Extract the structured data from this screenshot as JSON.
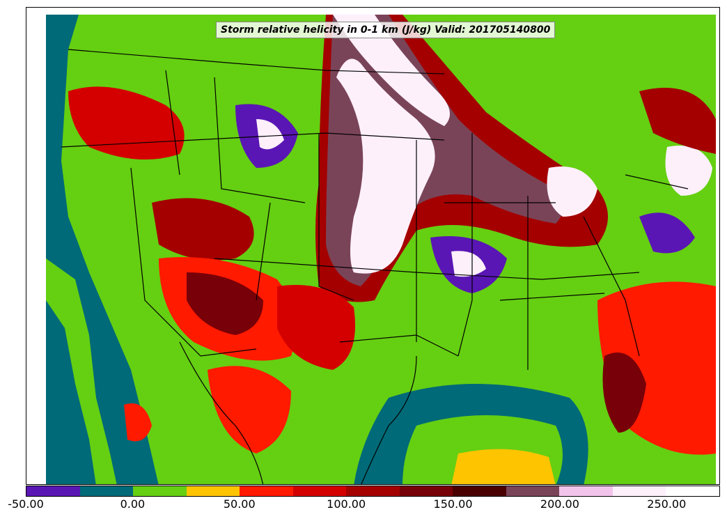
{
  "title": "Storm relative helicity in 0-1 km (J/kg) Valid: 201705140800",
  "colorbar": {
    "min": -50,
    "max": 275,
    "step": 25,
    "colors": [
      "#5a16b4",
      "#006a78",
      "#65cf12",
      "#ffc400",
      "#ff1a00",
      "#d40000",
      "#a40000",
      "#780008",
      "#4a0000",
      "#7a4458",
      "#f2c4ec",
      "#fdf0fb",
      "#ffffff"
    ],
    "tick_values": [
      -50,
      0,
      50,
      100,
      150,
      200,
      250
    ],
    "tick_labels": [
      "-50.00",
      "0.00",
      "50.00",
      "100.00",
      "150.00",
      "200.00",
      "250.00"
    ]
  },
  "map": {
    "description_colors": {
      "ocean_low": "#006a78",
      "background_green": "#65cf12",
      "high_helicity": "#fdf0fb"
    }
  }
}
